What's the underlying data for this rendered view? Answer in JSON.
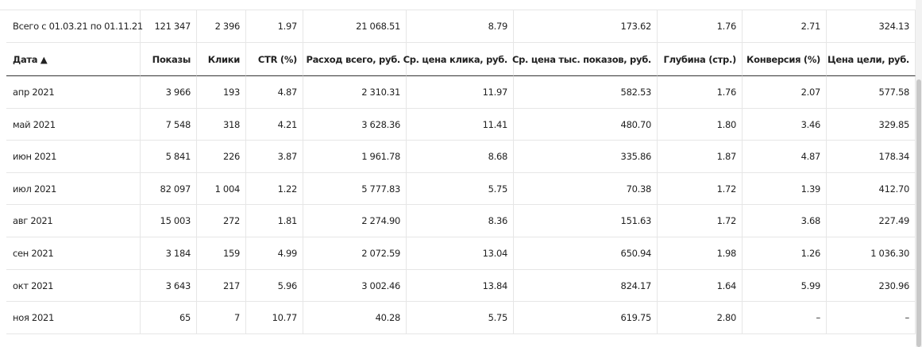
{
  "table": {
    "total": [
      "Всего с 01.03.21 по 01.11.21",
      "121 347",
      "2 396",
      "1.97",
      "21 068.51",
      "8.79",
      "173.62",
      "1.76",
      "2.71",
      "324.13"
    ],
    "header": [
      "Дата ▲",
      "Показы",
      "Клики",
      "CTR (%)",
      "Расход всего, руб.",
      "Ср. цена клика, руб.",
      "Ср. цена тыс. показов, руб.",
      "Глубина (стр.)",
      "Конверсия (%)",
      "Цена цели, руб."
    ],
    "rows": [
      [
        "апр 2021",
        "3 966",
        "193",
        "4.87",
        "2 310.31",
        "11.97",
        "582.53",
        "1.76",
        "2.07",
        "577.58"
      ],
      [
        "май 2021",
        "7 548",
        "318",
        "4.21",
        "3 628.36",
        "11.41",
        "480.70",
        "1.80",
        "3.46",
        "329.85"
      ],
      [
        "июн 2021",
        "5 841",
        "226",
        "3.87",
        "1 961.78",
        "8.68",
        "335.86",
        "1.87",
        "4.87",
        "178.34"
      ],
      [
        "июл 2021",
        "82 097",
        "1 004",
        "1.22",
        "5 777.83",
        "5.75",
        "70.38",
        "1.72",
        "1.39",
        "412.70"
      ],
      [
        "авг 2021",
        "15 003",
        "272",
        "1.81",
        "2 274.90",
        "8.36",
        "151.63",
        "1.72",
        "3.68",
        "227.49"
      ],
      [
        "сен 2021",
        "3 184",
        "159",
        "4.99",
        "2 072.59",
        "13.04",
        "650.94",
        "1.98",
        "1.26",
        "1 036.30"
      ],
      [
        "окт 2021",
        "3 643",
        "217",
        "5.96",
        "3 002.46",
        "13.84",
        "824.17",
        "1.64",
        "5.99",
        "230.96"
      ],
      [
        "ноя 2021",
        "65",
        "7",
        "10.77",
        "40.28",
        "5.75",
        "619.75",
        "2.80",
        "–",
        "–"
      ]
    ]
  }
}
